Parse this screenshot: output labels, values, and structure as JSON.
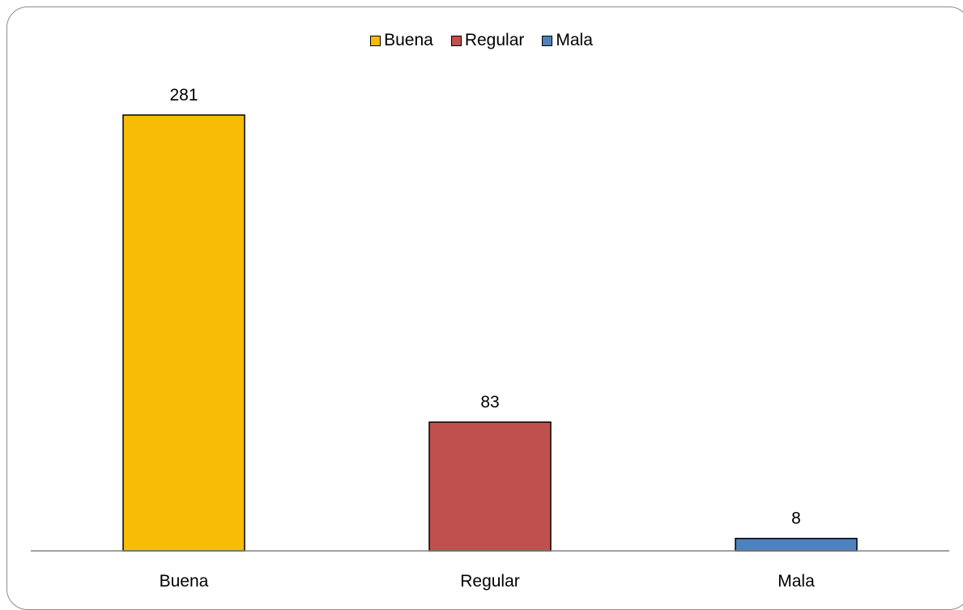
{
  "chart_data": {
    "type": "bar",
    "categories": [
      "Buena",
      "Regular",
      "Mala"
    ],
    "values": [
      281,
      83,
      8
    ],
    "colors": [
      "#F9BC06",
      "#C0504D",
      "#4F81BD"
    ],
    "data_labels": [
      "281",
      "83",
      "8"
    ],
    "legend": {
      "placement": "top-center",
      "entries": [
        "Buena",
        "Regular",
        "Mala"
      ]
    },
    "title": "",
    "xlabel": "",
    "ylabel": "",
    "ylim": [
      0,
      281
    ],
    "grid": false
  }
}
